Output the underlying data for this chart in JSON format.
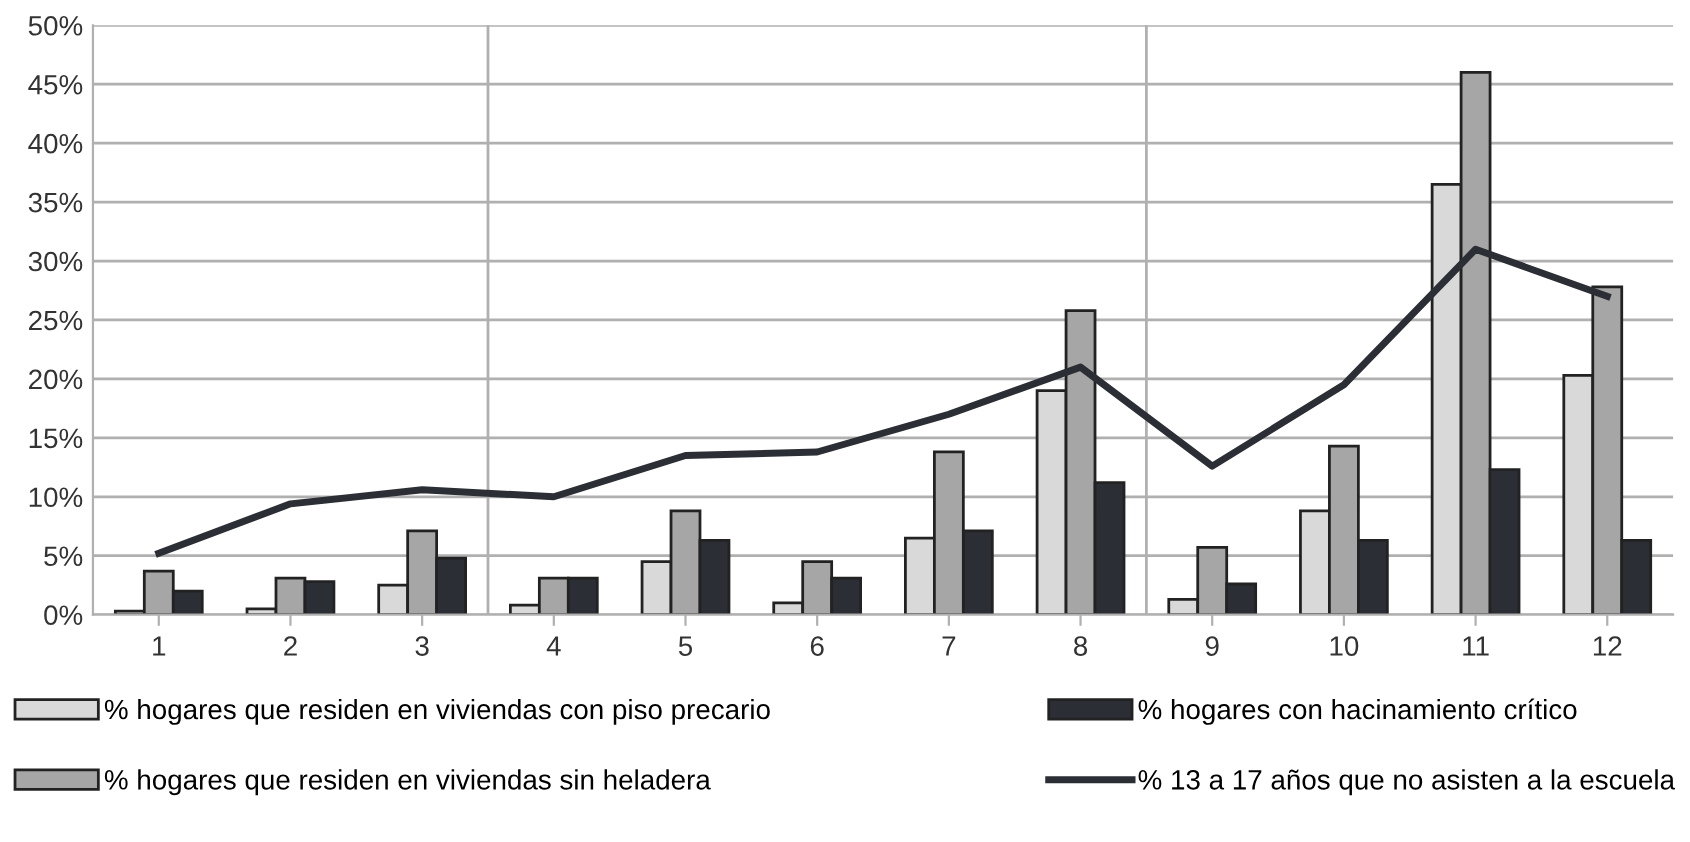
{
  "chart_data": {
    "type": "bar",
    "x": [
      1,
      2,
      3,
      4,
      5,
      6,
      7,
      8,
      9,
      10,
      11,
      12
    ],
    "xlim": [
      0.5,
      12.5
    ],
    "xticks": [
      1,
      2,
      3,
      4,
      5,
      6,
      7,
      8,
      9,
      10,
      11,
      12
    ],
    "ylim": [
      0,
      50
    ],
    "yticks": [
      {
        "value": 0,
        "label": "0%"
      },
      {
        "value": 5,
        "label": "5%"
      },
      {
        "value": 10,
        "label": "10%"
      },
      {
        "value": 15,
        "label": "15%"
      },
      {
        "value": 20,
        "label": "20%"
      },
      {
        "value": 25,
        "label": "25%"
      },
      {
        "value": 30,
        "label": "30%"
      },
      {
        "value": 35,
        "label": "35%"
      },
      {
        "value": 40,
        "label": "40%"
      },
      {
        "value": 45,
        "label": "45%"
      },
      {
        "value": 50,
        "label": "50%"
      }
    ],
    "grid": "y",
    "legend": "bottom",
    "ref_lines": [
      {
        "axis": "x",
        "value": 3.5,
        "color": "#b0b0b0"
      },
      {
        "axis": "x",
        "value": 8.5,
        "color": "#b0b0b0"
      }
    ],
    "series": [
      {
        "name": "% hogares que residen en viviendas con piso precario",
        "color": "#d9d9d9",
        "values": [
          0.3,
          0.5,
          2.5,
          0.8,
          4.5,
          1.0,
          6.5,
          19,
          1.3,
          8.8,
          36.5,
          20.3
        ]
      },
      {
        "name": "% hogares que residen en viviendas sin heladera",
        "color": "#a6a6a6",
        "values": [
          3.7,
          3.1,
          7.1,
          3.1,
          8.8,
          4.5,
          13.8,
          25.8,
          5.7,
          14.3,
          46,
          27.8
        ]
      },
      {
        "name": "% hogares con hacinamiento crítico",
        "color": "#2b2e34",
        "values": [
          2.0,
          2.8,
          4.8,
          3.1,
          6.3,
          3.1,
          7.1,
          11.2,
          2.6,
          6.3,
          12.3,
          6.3
        ]
      },
      {
        "name": "% 13 a 17 años que no asisten a la escuela",
        "type": "line",
        "color": "#2b2e34",
        "values": [
          5.2,
          9.4,
          10.6,
          10.0,
          13.5,
          13.8,
          17.0,
          21.0,
          12.6,
          19.5,
          31.0,
          27.0
        ]
      }
    ]
  }
}
